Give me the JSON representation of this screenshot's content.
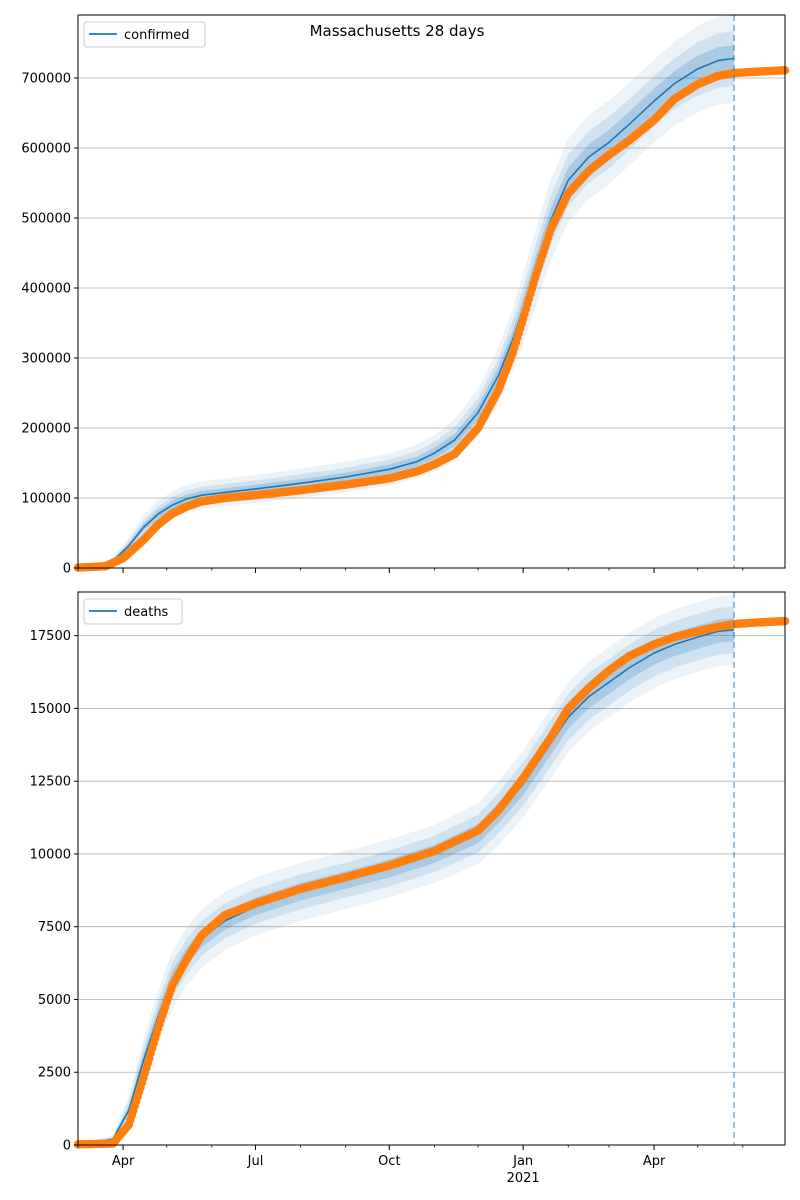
{
  "figure": {
    "title": "Massachusetts 28 days",
    "year_label": "2021"
  },
  "colors": {
    "model_line": "#1f77b4",
    "observed_points": "#ff7f0e",
    "band": "#1f77b4",
    "grid": "#b0b0b0",
    "forecast_marker": "#1f77b4"
  },
  "chart_data": [
    {
      "type": "line",
      "legend": "confirmed",
      "legend_position": "top-left",
      "x_range": [
        "2020-03-01",
        "2021-06-30"
      ],
      "x_ticks": [
        {
          "date": "2020-04-01",
          "label": "Apr"
        },
        {
          "date": "2020-07-01",
          "label": "Jul"
        },
        {
          "date": "2020-10-01",
          "label": "Oct"
        },
        {
          "date": "2021-01-01",
          "label": "Jan"
        },
        {
          "date": "2021-04-01",
          "label": "Apr"
        }
      ],
      "forecast_start": "2021-05-26",
      "ylim": [
        0,
        790000
      ],
      "y_ticks": [
        0,
        100000,
        200000,
        300000,
        400000,
        500000,
        600000,
        700000
      ],
      "grid": "horizontal",
      "model": {
        "dates": [
          "2020-03-01",
          "2020-03-15",
          "2020-03-25",
          "2020-04-05",
          "2020-04-15",
          "2020-04-25",
          "2020-05-05",
          "2020-05-15",
          "2020-05-25",
          "2020-06-10",
          "2020-07-01",
          "2020-08-01",
          "2020-09-01",
          "2020-10-01",
          "2020-10-20",
          "2020-11-01",
          "2020-11-15",
          "2020-12-01",
          "2020-12-15",
          "2020-12-25",
          "2021-01-01",
          "2021-01-10",
          "2021-01-20",
          "2021-02-01",
          "2021-02-15",
          "2021-03-01",
          "2021-03-15",
          "2021-04-01",
          "2021-04-15",
          "2021-05-01",
          "2021-05-15",
          "2021-05-26"
        ],
        "values": [
          1000,
          2000,
          10000,
          32000,
          58000,
          77000,
          90000,
          99000,
          104000,
          108000,
          113000,
          121000,
          130000,
          141000,
          152000,
          164000,
          183000,
          222000,
          275000,
          327000,
          370000,
          432000,
          497000,
          554000,
          587000,
          608000,
          634000,
          667000,
          692000,
          713000,
          725000,
          728000
        ],
        "band_widths": [
          [
            200,
            400,
            800
          ],
          [
            500,
            1200,
            2500
          ],
          [
            1500,
            3500,
            6000
          ],
          [
            3000,
            7000,
            12000
          ],
          [
            5000,
            10000,
            17000
          ],
          [
            6000,
            11000,
            19000
          ],
          [
            6000,
            12000,
            20000
          ],
          [
            6000,
            12000,
            20000
          ],
          [
            6000,
            12000,
            20000
          ],
          [
            6000,
            12000,
            20000
          ],
          [
            6000,
            12000,
            20000
          ],
          [
            6000,
            13000,
            21000
          ],
          [
            6000,
            13000,
            22000
          ],
          [
            7000,
            14000,
            23000
          ],
          [
            7000,
            15000,
            24000
          ],
          [
            8000,
            16000,
            26000
          ],
          [
            9000,
            18000,
            30000
          ],
          [
            10000,
            21000,
            34000
          ],
          [
            12000,
            24000,
            40000
          ],
          [
            13000,
            27000,
            45000
          ],
          [
            15000,
            30000,
            50000
          ],
          [
            16000,
            33000,
            55000
          ],
          [
            17000,
            35000,
            58000
          ],
          [
            18000,
            37000,
            60000
          ],
          [
            18000,
            37000,
            60000
          ],
          [
            18000,
            37000,
            60000
          ],
          [
            18000,
            36000,
            59000
          ],
          [
            18000,
            36000,
            59000
          ],
          [
            18000,
            36000,
            60000
          ],
          [
            19000,
            38000,
            62000
          ],
          [
            19000,
            39000,
            63000
          ],
          [
            19000,
            39000,
            64000
          ]
        ]
      },
      "observed": {
        "dates": [
          "2020-03-01",
          "2020-03-20",
          "2020-04-01",
          "2020-04-15",
          "2020-04-25",
          "2020-05-05",
          "2020-05-15",
          "2020-05-25",
          "2020-06-10",
          "2020-07-01",
          "2020-08-01",
          "2020-09-01",
          "2020-10-01",
          "2020-10-20",
          "2020-11-01",
          "2020-11-15",
          "2020-12-01",
          "2020-12-15",
          "2020-12-25",
          "2021-01-01",
          "2021-01-10",
          "2021-01-20",
          "2021-02-01",
          "2021-02-15",
          "2021-03-01",
          "2021-03-15",
          "2021-04-01",
          "2021-04-15",
          "2021-05-01",
          "2021-05-15",
          "2021-05-26",
          "2021-06-10",
          "2021-06-30"
        ],
        "values": [
          500,
          2500,
          14000,
          40000,
          62000,
          78000,
          88000,
          95000,
          100000,
          104000,
          111000,
          119000,
          128000,
          138000,
          148000,
          163000,
          200000,
          254000,
          308000,
          356000,
          420000,
          484000,
          535000,
          567000,
          590000,
          611000,
          640000,
          670000,
          691000,
          703000,
          707000,
          709000,
          711000
        ]
      }
    },
    {
      "type": "line",
      "legend": "deaths",
      "legend_position": "top-left",
      "x_range": [
        "2020-03-01",
        "2021-06-30"
      ],
      "x_ticks": [
        {
          "date": "2020-04-01",
          "label": "Apr"
        },
        {
          "date": "2020-07-01",
          "label": "Jul"
        },
        {
          "date": "2020-10-01",
          "label": "Oct"
        },
        {
          "date": "2021-01-01",
          "label": "Jan"
        },
        {
          "date": "2021-04-01",
          "label": "Apr"
        }
      ],
      "forecast_start": "2021-05-26",
      "ylim": [
        0,
        19000
      ],
      "y_ticks": [
        0,
        2500,
        5000,
        7500,
        10000,
        12500,
        15000,
        17500
      ],
      "grid": "horizontal",
      "model": {
        "dates": [
          "2020-03-01",
          "2020-03-25",
          "2020-04-05",
          "2020-04-15",
          "2020-04-25",
          "2020-05-05",
          "2020-05-15",
          "2020-05-25",
          "2020-06-10",
          "2020-07-01",
          "2020-08-01",
          "2020-09-01",
          "2020-10-01",
          "2020-11-01",
          "2020-12-01",
          "2020-12-15",
          "2021-01-01",
          "2021-01-20",
          "2021-02-01",
          "2021-02-15",
          "2021-03-01",
          "2021-03-15",
          "2021-04-01",
          "2021-04-15",
          "2021-05-01",
          "2021-05-15",
          "2021-05-26"
        ],
        "values": [
          0,
          200,
          1200,
          2900,
          4400,
          5700,
          6500,
          7100,
          7700,
          8200,
          8700,
          9100,
          9500,
          10000,
          10700,
          11400,
          12400,
          13800,
          14700,
          15400,
          15900,
          16400,
          16900,
          17200,
          17450,
          17650,
          17700
        ],
        "band_widths": [
          [
            0,
            10,
            20
          ],
          [
            40,
            80,
            130
          ],
          [
            150,
            300,
            500
          ],
          [
            230,
            450,
            750
          ],
          [
            280,
            550,
            900
          ],
          [
            300,
            600,
            1000
          ],
          [
            300,
            600,
            1000
          ],
          [
            300,
            600,
            1000
          ],
          [
            300,
            600,
            1000
          ],
          [
            300,
            600,
            1000
          ],
          [
            300,
            600,
            1000
          ],
          [
            300,
            600,
            1000
          ],
          [
            310,
            620,
            1000
          ],
          [
            310,
            620,
            1000
          ],
          [
            330,
            650,
            1050
          ],
          [
            350,
            700,
            1100
          ],
          [
            380,
            750,
            1150
          ],
          [
            400,
            800,
            1200
          ],
          [
            400,
            800,
            1200
          ],
          [
            400,
            800,
            1200
          ],
          [
            400,
            800,
            1200
          ],
          [
            400,
            800,
            1200
          ],
          [
            400,
            800,
            1200
          ],
          [
            400,
            800,
            1200
          ],
          [
            400,
            800,
            1200
          ],
          [
            400,
            800,
            1200
          ],
          [
            400,
            800,
            1200
          ]
        ]
      },
      "observed": {
        "dates": [
          "2020-03-01",
          "2020-03-25",
          "2020-04-05",
          "2020-04-15",
          "2020-04-25",
          "2020-05-05",
          "2020-05-15",
          "2020-05-25",
          "2020-06-10",
          "2020-07-01",
          "2020-08-01",
          "2020-09-01",
          "2020-10-01",
          "2020-11-01",
          "2020-12-01",
          "2020-12-15",
          "2021-01-01",
          "2021-01-20",
          "2021-02-01",
          "2021-02-15",
          "2021-03-01",
          "2021-03-15",
          "2021-04-01",
          "2021-04-15",
          "2021-05-01",
          "2021-05-15",
          "2021-05-26",
          "2021-06-10",
          "2021-06-30"
        ],
        "values": [
          20,
          50,
          700,
          2300,
          4000,
          5500,
          6400,
          7200,
          7900,
          8300,
          8800,
          9200,
          9600,
          10100,
          10800,
          11500,
          12600,
          14000,
          15000,
          15700,
          16300,
          16800,
          17200,
          17450,
          17650,
          17800,
          17900,
          17950,
          18000
        ]
      }
    }
  ]
}
